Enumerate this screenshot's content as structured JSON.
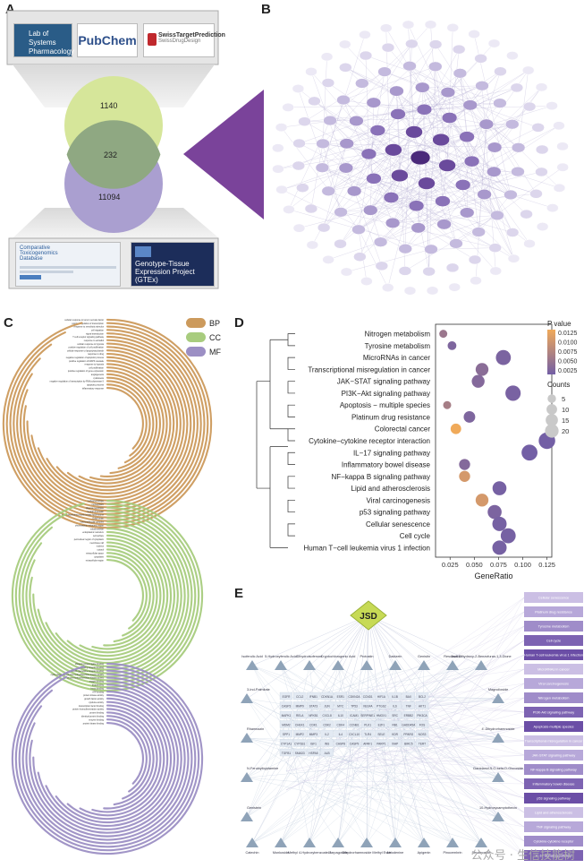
{
  "panels": {
    "a": "A",
    "b": "B",
    "c": "C",
    "d": "D",
    "e": "E"
  },
  "panel_a": {
    "logos": [
      "Lab of Systems Pharmacology",
      "PubChem",
      "SwissTargetPrediction"
    ],
    "logo_sub": "SwissDrugDesign",
    "venn": {
      "top_only": "1140",
      "overlap": "232",
      "bottom_only": "11094"
    },
    "bottom_left_title": "Comparative Toxicogenomics Database",
    "gtex_title": "Genotype-Tissue Expression Project (GTEx)"
  },
  "panel_c": {
    "legend": [
      {
        "label": "BP",
        "color": "#cc9a5c"
      },
      {
        "label": "CC",
        "color": "#a8cc7e"
      },
      {
        "label": "MF",
        "color": "#9c8fc4"
      }
    ],
    "bp_terms": [
      "inflammatory response",
      "apoptotic process",
      "negative regulation of transcription by RNA polymerase II",
      "cytokinesis",
      "angiogenesis",
      "positive regulation of gene expression",
      "cell proliferation",
      "response to hypoxia",
      "positive regulation of MAPK cascade",
      "negative regulation of apoptotic process",
      "response to drug",
      "cellular response to lipopolysaccharide",
      "positive regulation of cell proliferation",
      "cellular response to hypoxia",
      "response to estradiol",
      "T cell receptor signaling pathway",
      "signal transduction",
      "cell migration",
      "response to xenobiotic stimulus",
      "positive regulation of transcription",
      "cellular response to tumor necrosis factor"
    ],
    "cc_terms": [
      "extracellular region",
      "cytoplasm",
      "extracellular space",
      "cytosol",
      "nucleus",
      "membrane raft",
      "perinuclear region of cytoplasm",
      "cell surface",
      "endoplasmic reticulum",
      "mitochondrion",
      "chromosome, telomeric region",
      "macromolecular complex",
      "Golgi lumen",
      "cyclin-dependent protein kinase holoenzyme",
      "nuclear chromatin",
      "plasma membrane",
      "nucleoplasm",
      "nuclear envelope"
    ],
    "mf_terms": [
      "protein kinase binding",
      "enzyme binding",
      "identical protein binding",
      "protein binding",
      "protein homodimerization activity",
      "transcription factor binding",
      "cytokine activity",
      "growth factor activity",
      "protein kinase activity",
      "ATP binding",
      "heme binding",
      "drug binding",
      "oxygen binding",
      "protein serine/threonine kinase activity",
      "cyclin-dependent protein serine/threonine kinase activity",
      "CXCR chemokine receptor binding",
      "signaling receptor binding",
      "ubiquitin protein ligase binding"
    ]
  },
  "panel_d": {
    "legend_p_title": "P value",
    "legend_p_ticks": [
      "0.0125",
      "0.0100",
      "0.0075",
      "0.0050",
      "0.0025"
    ],
    "legend_counts_title": "Counts",
    "legend_counts": [
      "5",
      "10",
      "15",
      "20"
    ]
  },
  "chart_data": {
    "type": "scatter",
    "xlabel": "GeneRatio",
    "xlim": [
      0.01,
      0.13
    ],
    "xticks": [
      "0.025",
      "0.050",
      "0.075",
      "0.100",
      "0.125"
    ],
    "categories": [
      "Nitrogen metabolism",
      "Tyrosine metabolism",
      "MicroRNAs in cancer",
      "Transcriptional misregulation in cancer",
      "JAK−STAT signaling pathway",
      "PI3K−Akt signaling pathway",
      "Apoptosis − multiple species",
      "Platinum drug resistance",
      "Colorectal cancer",
      "Cytokine−cytokine receptor interaction",
      "IL−17 signaling pathway",
      "Inflammatory bowel disease",
      "NF−kappa B signaling pathway",
      "Lipid and atherosclerosis",
      "Viral carcinogenesis",
      "p53 signaling pathway",
      "Cellular senescence",
      "Cell cycle",
      "Human T−cell leukemia virus 1 infection"
    ],
    "gene_ratio": [
      0.018,
      0.027,
      0.08,
      0.058,
      0.054,
      0.09,
      0.022,
      0.045,
      0.031,
      0.125,
      0.107,
      0.04,
      0.04,
      0.076,
      0.058,
      0.071,
      0.076,
      0.085,
      0.076
    ],
    "counts": [
      3,
      4,
      18,
      12,
      12,
      19,
      3,
      9,
      7,
      23,
      21,
      8,
      8,
      15,
      12,
      15,
      16,
      18,
      16
    ],
    "p_value": [
      0.006,
      0.0035,
      0.0032,
      0.0045,
      0.004,
      0.003,
      0.007,
      0.0035,
      0.0135,
      0.0025,
      0.0025,
      0.004,
      0.011,
      0.0028,
      0.011,
      0.0033,
      0.0028,
      0.0028,
      0.0028
    ]
  },
  "panel_e": {
    "center": "JSD",
    "top_compounds": [
      "Isoferulic Acid",
      "5-Hydroxyferulic Acid",
      "Dihydroisoferone",
      "Cryptochlorogenic Acid",
      "Protostin",
      "Daidzein",
      "Genistin",
      "Resveratrol",
      "3a,4-Dihydroxy-2-Benzofuran-1,3-Dione"
    ],
    "left_compounds": [
      "3-Ind-Palmitate",
      "Rhamnazin",
      "N-Feruloyltryptamine",
      "Genistein"
    ],
    "right_compounds": [
      "Magnolioside",
      "4'-Dihydrorhamnoside",
      "Cianidanol-5-O-beta-D-Glucoside",
      "10-Hydroxycamptothecin"
    ],
    "bottom_compounds": [
      "Catechin",
      "Monkoside",
      "Methyl 4-Hydroxybenzoate-2",
      "Harpagoside",
      "Dihydrorhamnoside Methyl Ester",
      "Liriodenine",
      "Apigenin",
      "Pinocembrin",
      "Sesamoside"
    ],
    "pathways": [
      "Cellular senescence",
      "Platinum drug resistance",
      "Tyrosine metabolism",
      "Cell cycle",
      "Human T-cell leukemia virus 1 infection",
      "MicroRNAs in cancer",
      "Viral carcinogenesis",
      "Nitrogen metabolism",
      "PI3K-Akt signaling pathway",
      "Apoptosis-multiple species",
      "Transcriptional misregulation in cancer",
      "JAK-STAT signaling pathway",
      "NF-kappa B signaling pathway",
      "Inflammatory bowel disease",
      "p53 signaling pathway",
      "Lipid and atherosclerosis",
      "TNF signaling pathway",
      "Cytokine-cytokine receptor",
      "IL-17 signaling pathway"
    ],
    "genes": [
      "EGFR",
      "CCL2",
      "IFNB1",
      "CDKN1A",
      "ESR1",
      "CDKN2A",
      "CCND1",
      "HIF1A",
      "IL1B",
      "BAX",
      "BCL2",
      "CASP3",
      "MMP9",
      "STAT3",
      "JUN",
      "MYC",
      "TP53",
      "VEGFA",
      "PTGS2",
      "IL6",
      "TNF",
      "AKT1",
      "MAPK1",
      "RELA",
      "NFKB1",
      "CXCL8",
      "IL10",
      "ICAM1",
      "SERPINE1",
      "HMOX1",
      "SRC",
      "ERBB2",
      "PIK3CA",
      "MDM2",
      "CHEK1",
      "CDK1",
      "CDK2",
      "CDK4",
      "CCNB1",
      "PLK1",
      "E2F1",
      "RB1",
      "GADD45A",
      "FOS",
      "SPP1",
      "MMP2",
      "MMP3",
      "IL2",
      "IL4",
      "CXCL10",
      "TLR4",
      "SELE",
      "KDR",
      "PPARG",
      "NOS3",
      "CYP1A1",
      "CYP1B1",
      "IGF1",
      "INS",
      "CASP8",
      "CASP9",
      "APAF1",
      "PARP1",
      "XIAP",
      "BIRC5",
      "TERT",
      "TGFB1",
      "SMAD3",
      "HSPA5",
      "ALB"
    ]
  },
  "watermark": "公众号 · 生信技能树"
}
